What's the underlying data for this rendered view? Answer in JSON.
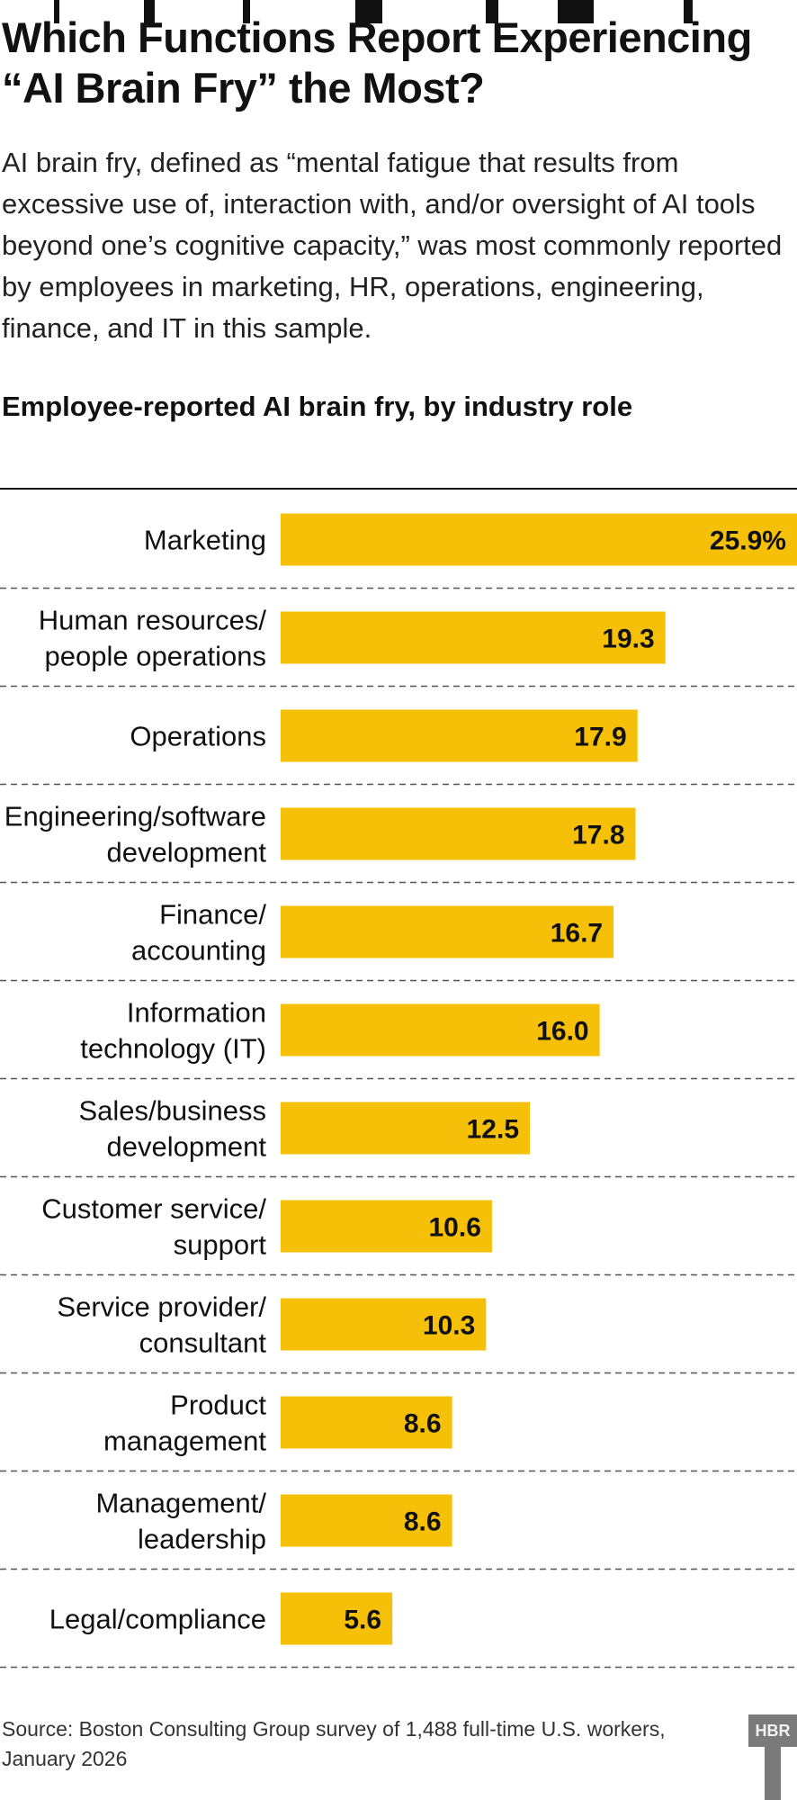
{
  "headline": "Which Functions Report Experiencing\n“AI Brain Fry” the Most?",
  "dek": "AI brain fry, defined as “mental fatigue that results from excessive use of, interaction with, and/or oversight of AI tools beyond one’s cognitive capacity,” was most commonly reported by employees in marketing, HR, operations, engineering, finance, and IT in this sample.",
  "source": "Source: Boston Consulting Group survey of 1,488 full-time U.S. workers,\nJanuary 2026",
  "logo_text": "HBR",
  "colors": {
    "bar": "#f5c007",
    "text": "#111111",
    "divider": "#555555"
  },
  "chart_data": {
    "type": "bar",
    "orientation": "horizontal",
    "title": "Employee-reported AI brain fry, by industry role",
    "categories": [
      [
        "Marketing"
      ],
      [
        "Human resources/",
        "people operations"
      ],
      [
        "Operations"
      ],
      [
        "Engineering/software",
        "development"
      ],
      [
        "Finance/",
        "accounting"
      ],
      [
        "Information",
        "technology (IT)"
      ],
      [
        "Sales/business",
        "development"
      ],
      [
        "Customer service/",
        "support"
      ],
      [
        "Service provider/",
        "consultant"
      ],
      [
        "Product",
        "management"
      ],
      [
        "Management/",
        "leadership"
      ],
      [
        "Legal/compliance"
      ]
    ],
    "values": [
      25.9,
      19.3,
      17.9,
      17.8,
      16.7,
      16.0,
      12.5,
      10.6,
      10.3,
      8.6,
      8.6,
      5.6
    ],
    "data_labels": [
      "25.9%",
      "19.3",
      "17.9",
      "17.8",
      "16.7",
      "16.0",
      "12.5",
      "10.6",
      "10.3",
      "8.6",
      "8.6",
      "5.6"
    ],
    "xlim": [
      0,
      25.9
    ],
    "grid": false,
    "legend": "none"
  }
}
